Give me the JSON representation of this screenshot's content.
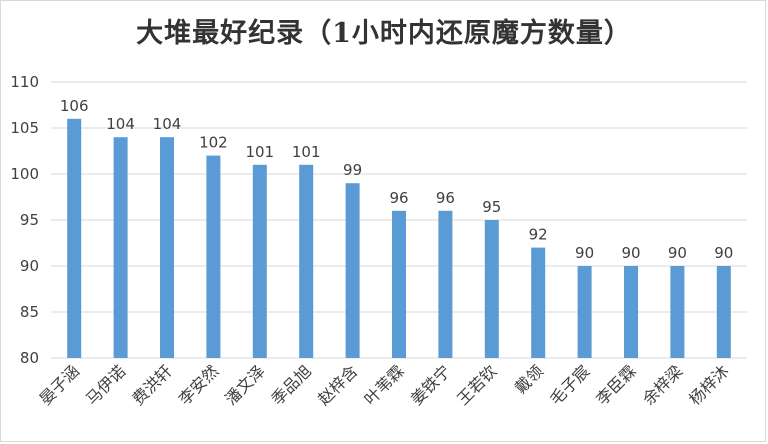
{
  "chart_data": {
    "type": "bar",
    "title": "大堆最好纪录（1小时内还原魔方数量）",
    "categories": [
      "晏子涵",
      "马伊诺",
      "费洪轩",
      "李安然",
      "潘文泽",
      "季品旭",
      "赵梓含",
      "叶苇霖",
      "姜铁宁",
      "王若钦",
      "戴领",
      "毛子宸",
      "李臣霖",
      "余梓梁",
      "杨梓沐"
    ],
    "values": [
      106,
      104,
      104,
      102,
      101,
      101,
      99,
      96,
      96,
      95,
      92,
      90,
      90,
      90,
      90
    ],
    "ylim": [
      80,
      110
    ],
    "yticks": [
      80,
      85,
      90,
      95,
      100,
      105,
      110
    ],
    "grid": true,
    "legend": "none",
    "bar_color": "#5b9bd5",
    "grid_color": "#d9d9d9"
  }
}
